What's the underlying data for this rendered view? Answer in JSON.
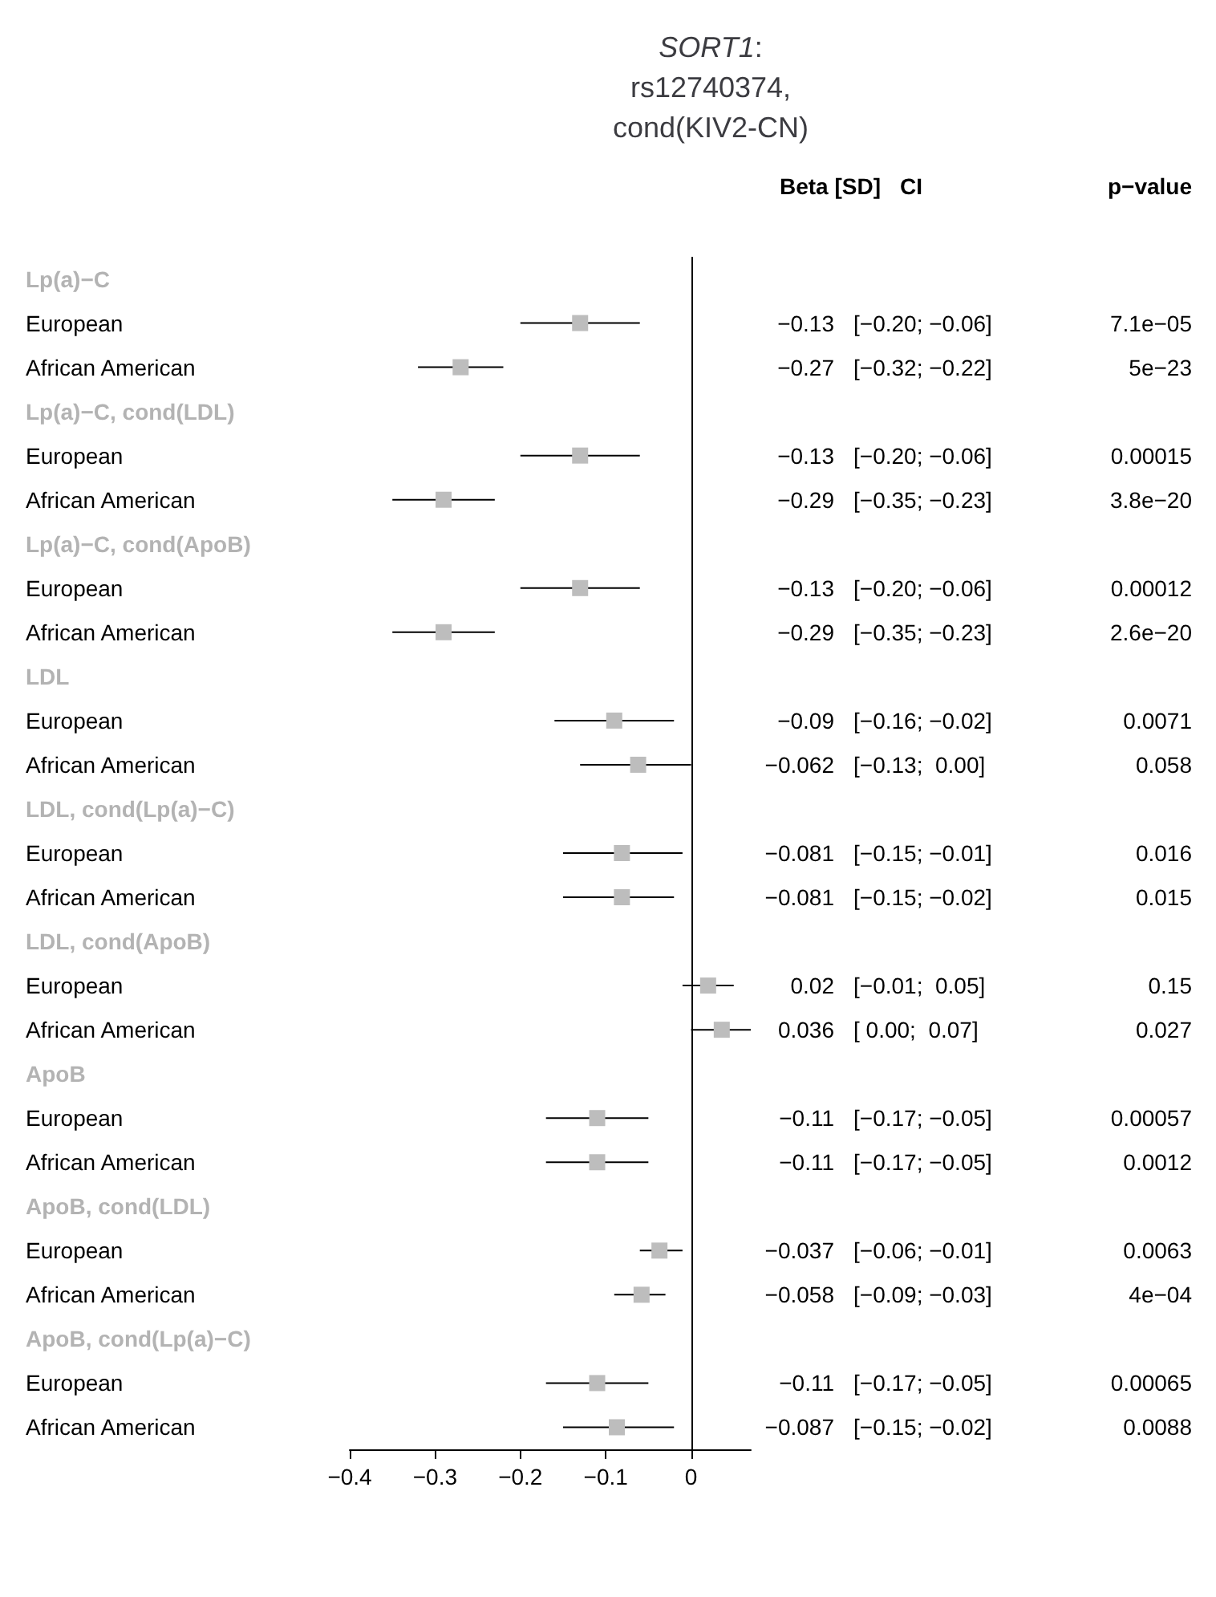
{
  "chart_data": {
    "type": "scatter",
    "orientation": "horizontal",
    "title": "SORT1:\nrs12740374,\ncond(KIV2-CN)",
    "categories": [
      "Lp(a)−C",
      "European",
      "African American",
      "Lp(a)−C, cond(LDL)",
      "European",
      "African American",
      "Lp(a)−C, cond(ApoB)",
      "European",
      "African American",
      "LDL",
      "European",
      "African American",
      "LDL, cond(Lp(a)−C)",
      "European",
      "African American",
      "LDL, cond(ApoB)",
      "European",
      "African American",
      "ApoB",
      "European",
      "African American",
      "ApoB, cond(LDL)",
      "European",
      "African American",
      "ApoB, cond(Lp(a)−C)",
      "European",
      "African American"
    ],
    "values": [
      null,
      -0.13,
      -0.27,
      null,
      -0.13,
      -0.29,
      null,
      -0.13,
      -0.29,
      null,
      -0.09,
      -0.062,
      null,
      -0.081,
      -0.081,
      null,
      0.02,
      0.036,
      null,
      -0.11,
      -0.11,
      null,
      -0.037,
      -0.058,
      null,
      -0.11,
      -0.087
    ],
    "errors": [
      null,
      [
        -0.2,
        -0.06
      ],
      [
        -0.32,
        -0.22
      ],
      null,
      [
        -0.2,
        -0.06
      ],
      [
        -0.35,
        -0.23
      ],
      null,
      [
        -0.2,
        -0.06
      ],
      [
        -0.35,
        -0.23
      ],
      null,
      [
        -0.16,
        -0.02
      ],
      [
        -0.13,
        0.0
      ],
      null,
      [
        -0.15,
        -0.01
      ],
      [
        -0.15,
        -0.02
      ],
      null,
      [
        -0.01,
        0.05
      ],
      [
        0.0,
        0.07
      ],
      null,
      [
        -0.17,
        -0.05
      ],
      [
        -0.17,
        -0.05
      ],
      null,
      [
        -0.06,
        -0.01
      ],
      [
        -0.09,
        -0.03
      ],
      null,
      [
        -0.17,
        -0.05
      ],
      [
        -0.15,
        -0.02
      ]
    ],
    "color": "#bdbdbd",
    "marker": "square",
    "grid": false,
    "xlim": [
      -0.4,
      0.07
    ],
    "xticks": [
      {
        "value": -0.4,
        "label": "−0.4"
      },
      {
        "value": -0.3,
        "label": "−0.3"
      },
      {
        "value": -0.2,
        "label": "−0.2"
      },
      {
        "value": -0.1,
        "label": "−0.1"
      },
      0
    ],
    "ref_lines": [
      {
        "axis": "x",
        "value": 0,
        "color": "#000000"
      }
    ],
    "annotations": [
      "Beta [SD]",
      "CI",
      "p−value",
      "−0.13",
      "[−0.20; −0.06]",
      "7.1e−05",
      "−0.27",
      "[−0.32; −0.22]",
      "5e−23",
      "−0.13",
      "[−0.20; −0.06]",
      "0.00015",
      "−0.29",
      "[−0.35; −0.23]",
      "3.8e−20",
      "−0.13",
      "[−0.20; −0.06]",
      "0.00012",
      "−0.29",
      "[−0.35; −0.23]",
      "2.6e−20",
      "−0.09",
      "[−0.16; −0.02]",
      "0.0071",
      "−0.062",
      "[−0.13;  0.00]",
      "0.058",
      "−0.081",
      "[−0.15; −0.01]",
      "0.016",
      "−0.081",
      "[−0.15; −0.02]",
      "0.015",
      "0.02",
      "[−0.01;  0.05]",
      "0.15",
      "0.036",
      "[ 0.00;  0.07]",
      "0.027",
      "−0.11",
      "[−0.17; −0.05]",
      "0.00057",
      "−0.11",
      "[−0.17; −0.05]",
      "0.0012",
      "−0.037",
      "[−0.06; −0.01]",
      "0.0063",
      "−0.058",
      "[−0.09; −0.03]",
      "4e−04",
      "−0.11",
      "[−0.17; −0.05]",
      "0.00065",
      "−0.087",
      "[−0.15; −0.02]",
      "0.0088"
    ]
  }
}
